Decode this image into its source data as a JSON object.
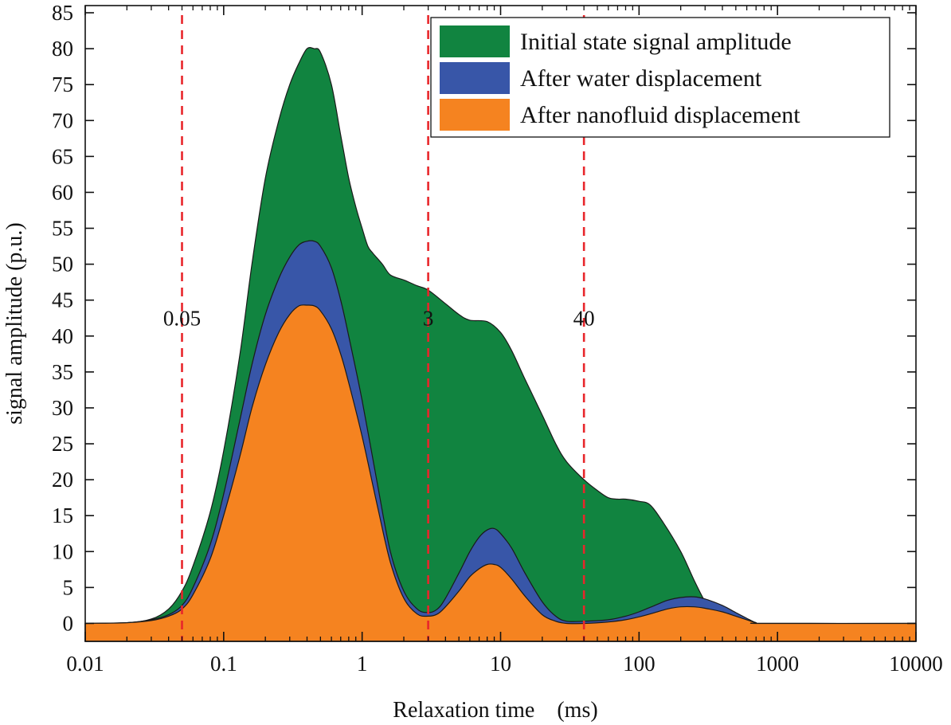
{
  "chart_data": {
    "type": "area",
    "title": "",
    "xlabel": "Relaxation time　(ms)",
    "ylabel": "signal amplitude (p.u.)",
    "xscale": "log",
    "xlim": [
      0.01,
      10000
    ],
    "ylim": [
      -2.5,
      86
    ],
    "xticks": [
      {
        "value": 0.01,
        "label": "0.01"
      },
      {
        "value": 0.1,
        "label": "0.1"
      },
      {
        "value": 1,
        "label": "1"
      },
      {
        "value": 10,
        "label": "10"
      },
      {
        "value": 100,
        "label": "100"
      },
      {
        "value": 1000,
        "label": "1000"
      },
      {
        "value": 10000,
        "label": "10000"
      }
    ],
    "yticks": [
      0,
      5,
      10,
      15,
      20,
      25,
      30,
      35,
      40,
      45,
      50,
      55,
      60,
      65,
      70,
      75,
      80,
      85
    ],
    "vlines": [
      {
        "x": 0.05,
        "label": "0.05",
        "color": "#e8262b"
      },
      {
        "x": 3,
        "label": "3",
        "color": "#e8262b"
      },
      {
        "x": 40,
        "label": "40",
        "color": "#e8262b"
      }
    ],
    "legend_position": "top-right",
    "series": [
      {
        "name": "Initial state signal amplitude",
        "color": "#118440",
        "points": [
          [
            0.01,
            0
          ],
          [
            0.02,
            0.1
          ],
          [
            0.03,
            0.6
          ],
          [
            0.04,
            2
          ],
          [
            0.05,
            4.5
          ],
          [
            0.06,
            8
          ],
          [
            0.08,
            15.5
          ],
          [
            0.1,
            24
          ],
          [
            0.13,
            37
          ],
          [
            0.16,
            50
          ],
          [
            0.2,
            62
          ],
          [
            0.25,
            70
          ],
          [
            0.3,
            75
          ],
          [
            0.35,
            78
          ],
          [
            0.4,
            80
          ],
          [
            0.45,
            80
          ],
          [
            0.5,
            79.5
          ],
          [
            0.6,
            75
          ],
          [
            0.7,
            68
          ],
          [
            0.8,
            62
          ],
          [
            0.9,
            58
          ],
          [
            1.0,
            55
          ],
          [
            1.1,
            52.5
          ],
          [
            1.2,
            51.5
          ],
          [
            1.4,
            50
          ],
          [
            1.6,
            48.5
          ],
          [
            2.0,
            47.8
          ],
          [
            2.5,
            47
          ],
          [
            3.0,
            46.4
          ],
          [
            4.0,
            44.5
          ],
          [
            5.0,
            43
          ],
          [
            6.0,
            42.2
          ],
          [
            8.0,
            42
          ],
          [
            10,
            40.5
          ],
          [
            12,
            38
          ],
          [
            15,
            34
          ],
          [
            20,
            29
          ],
          [
            25,
            25
          ],
          [
            30,
            22.5
          ],
          [
            40,
            20
          ],
          [
            50,
            18.5
          ],
          [
            60,
            17.5
          ],
          [
            70,
            17.3
          ],
          [
            80,
            17.3
          ],
          [
            100,
            17
          ],
          [
            120,
            16.5
          ],
          [
            150,
            14
          ],
          [
            200,
            10
          ],
          [
            250,
            6
          ],
          [
            300,
            3
          ],
          [
            350,
            1
          ],
          [
            400,
            0
          ],
          [
            700,
            0
          ],
          [
            10000,
            0
          ]
        ]
      },
      {
        "name": "After water displacement",
        "color": "#3856a8",
        "points": [
          [
            0.01,
            0
          ],
          [
            0.02,
            0.1
          ],
          [
            0.03,
            0.5
          ],
          [
            0.04,
            1.2
          ],
          [
            0.05,
            2.5
          ],
          [
            0.06,
            5
          ],
          [
            0.08,
            11
          ],
          [
            0.1,
            18
          ],
          [
            0.13,
            28
          ],
          [
            0.16,
            36
          ],
          [
            0.2,
            43
          ],
          [
            0.25,
            48
          ],
          [
            0.3,
            51
          ],
          [
            0.35,
            52.7
          ],
          [
            0.4,
            53.2
          ],
          [
            0.45,
            53.2
          ],
          [
            0.5,
            52.5
          ],
          [
            0.6,
            49.5
          ],
          [
            0.7,
            45
          ],
          [
            0.8,
            40
          ],
          [
            1.0,
            31
          ],
          [
            1.3,
            19
          ],
          [
            1.6,
            10
          ],
          [
            2.0,
            4.5
          ],
          [
            2.5,
            2
          ],
          [
            3.0,
            1.5
          ],
          [
            3.5,
            2
          ],
          [
            4.0,
            3.5
          ],
          [
            5.0,
            7
          ],
          [
            6.0,
            10
          ],
          [
            7.0,
            12
          ],
          [
            8.0,
            13
          ],
          [
            9.0,
            13.2
          ],
          [
            10,
            12.5
          ],
          [
            12,
            10.5
          ],
          [
            15,
            7
          ],
          [
            20,
            3
          ],
          [
            25,
            1
          ],
          [
            30,
            0.3
          ],
          [
            40,
            0.3
          ],
          [
            60,
            0.5
          ],
          [
            80,
            1
          ],
          [
            100,
            1.6
          ],
          [
            130,
            2.5
          ],
          [
            160,
            3.2
          ],
          [
            200,
            3.6
          ],
          [
            250,
            3.7
          ],
          [
            300,
            3.4
          ],
          [
            400,
            2.5
          ],
          [
            500,
            1.5
          ],
          [
            600,
            0.7
          ],
          [
            700,
            0.1
          ],
          [
            800,
            0
          ],
          [
            10000,
            0
          ]
        ]
      },
      {
        "name": "After nanofluid displacement",
        "color": "#f58320",
        "points": [
          [
            0.01,
            0
          ],
          [
            0.02,
            0.1
          ],
          [
            0.03,
            0.4
          ],
          [
            0.04,
            1
          ],
          [
            0.05,
            2
          ],
          [
            0.06,
            4
          ],
          [
            0.08,
            9
          ],
          [
            0.1,
            15
          ],
          [
            0.13,
            23
          ],
          [
            0.16,
            30
          ],
          [
            0.2,
            36
          ],
          [
            0.25,
            40.5
          ],
          [
            0.3,
            43
          ],
          [
            0.35,
            44.2
          ],
          [
            0.4,
            44.3
          ],
          [
            0.45,
            44.2
          ],
          [
            0.5,
            43.5
          ],
          [
            0.6,
            41
          ],
          [
            0.7,
            37.5
          ],
          [
            0.8,
            33.5
          ],
          [
            1.0,
            26
          ],
          [
            1.3,
            16
          ],
          [
            1.6,
            8.5
          ],
          [
            2.0,
            3.5
          ],
          [
            2.5,
            1.3
          ],
          [
            3.0,
            1
          ],
          [
            3.5,
            1.3
          ],
          [
            4.0,
            2.3
          ],
          [
            5.0,
            4.5
          ],
          [
            6.0,
            6.5
          ],
          [
            7.0,
            7.6
          ],
          [
            8.0,
            8.2
          ],
          [
            9.0,
            8.2
          ],
          [
            10,
            7.8
          ],
          [
            12,
            6.2
          ],
          [
            15,
            3.8
          ],
          [
            20,
            1.2
          ],
          [
            25,
            0.3
          ],
          [
            30,
            0
          ],
          [
            40,
            0
          ],
          [
            60,
            0.2
          ],
          [
            80,
            0.5
          ],
          [
            100,
            0.9
          ],
          [
            130,
            1.5
          ],
          [
            160,
            2
          ],
          [
            200,
            2.3
          ],
          [
            250,
            2.3
          ],
          [
            300,
            2.1
          ],
          [
            400,
            1.6
          ],
          [
            500,
            1
          ],
          [
            600,
            0.5
          ],
          [
            700,
            0.1
          ],
          [
            800,
            0
          ],
          [
            10000,
            0
          ]
        ]
      }
    ]
  }
}
